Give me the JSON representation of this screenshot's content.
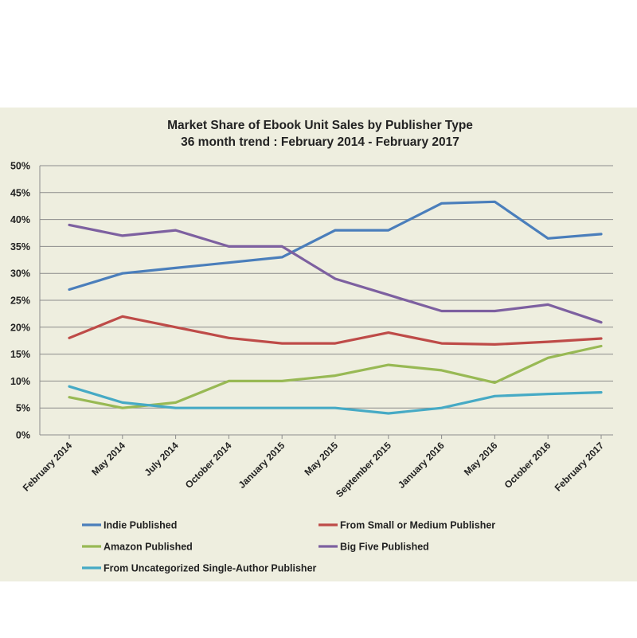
{
  "chart_data": {
    "type": "line",
    "title": "Market Share of Ebook Unit Sales by Publisher Type",
    "subtitle": "36 month trend : February 2014 - February 2017",
    "xlabel": "",
    "ylabel": "",
    "ylim": [
      0,
      50
    ],
    "ytick_step": 5,
    "ytick_suffix": "%",
    "grid": "horizontal",
    "legend_position": "bottom",
    "categories": [
      "February 2014",
      "May 2014",
      "July 2014",
      "October 2014",
      "January 2015",
      "May 2015",
      "September 2015",
      "January 2016",
      "May 2016",
      "October 2016",
      "February 2017"
    ],
    "series": [
      {
        "name": "Indie Published",
        "color": "#4a7ebb",
        "values": [
          27,
          30,
          31,
          32,
          33,
          38,
          38,
          43,
          43.3,
          36.5,
          37.3
        ]
      },
      {
        "name": "From Small or Medium Publisher",
        "color": "#be4b48",
        "values": [
          18,
          22,
          20,
          18,
          17,
          17,
          19,
          17,
          16.8,
          17.3,
          17.9
        ]
      },
      {
        "name": "Amazon Published",
        "color": "#98b954",
        "values": [
          7,
          5,
          6,
          10,
          10,
          11,
          13,
          12,
          9.7,
          14.3,
          16.5
        ]
      },
      {
        "name": "Big Five Published",
        "color": "#7d60a0",
        "values": [
          39,
          37,
          38,
          35,
          35,
          29,
          26,
          23,
          23,
          24.2,
          20.9
        ]
      },
      {
        "name": "From Uncategorized Single-Author Publisher",
        "color": "#46aac5",
        "values": [
          9,
          6,
          5,
          5,
          5,
          5,
          4,
          5,
          7.2,
          7.6,
          7.9
        ]
      }
    ]
  }
}
